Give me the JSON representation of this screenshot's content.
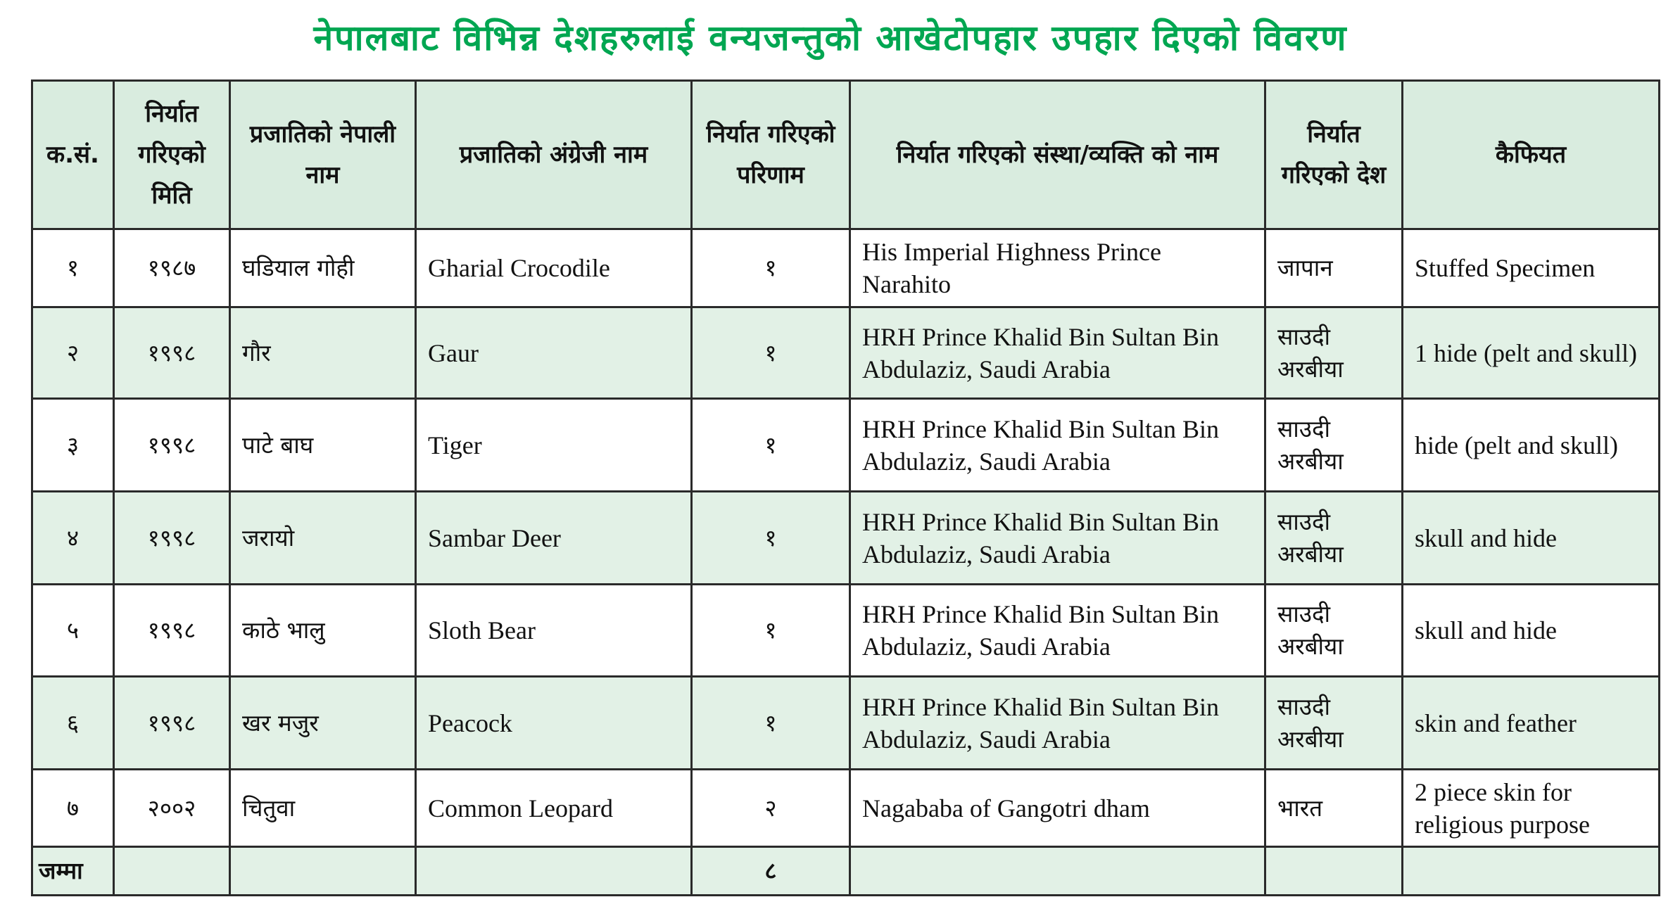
{
  "title": "नेपालबाट विभिन्न देशहरुलाई वन्यजन्तुको आखेटोपहार उपहार दिएको विवरण",
  "colors": {
    "title": "#00a651",
    "header_bg": "#d9ecdf",
    "alt_row_bg": "#e2f1e6"
  },
  "headers": [
    "क.सं.",
    "निर्यात गरिएको मिति",
    "प्रजातिको नेपाली नाम",
    "प्रजातिको अंग्रेजी नाम",
    "निर्यात गरिएको परिणाम",
    "निर्यात गरिएको संस्था/व्यक्ति को नाम",
    "निर्यात गरिएको देश",
    "कैफियत"
  ],
  "rows": [
    [
      "१",
      "१९८७",
      "घडियाल गोही",
      "Gharial Crocodile",
      "१",
      "His Imperial Highness Prince Narahito",
      "जापान",
      "Stuffed Specimen"
    ],
    [
      "२",
      "१९९८",
      "गौर",
      "Gaur",
      "१",
      "HRH Prince Khalid Bin Sultan Bin Abdulaziz, Saudi Arabia",
      "साउदी अरबीया",
      "1 hide (pelt and skull)"
    ],
    [
      "३",
      "१९९८",
      "पाटे बाघ",
      "Tiger",
      "१",
      "HRH Prince Khalid Bin Sultan Bin Abdulaziz, Saudi Arabia",
      "साउदी अरबीया",
      "hide (pelt and skull)"
    ],
    [
      "४",
      "१९९८",
      "जरायो",
      "Sambar Deer",
      "१",
      "HRH Prince Khalid Bin Sultan Bin Abdulaziz, Saudi Arabia",
      "साउदी अरबीया",
      "skull and hide"
    ],
    [
      "५",
      "१९९८",
      "काठे भालु",
      "Sloth Bear",
      "१",
      "HRH Prince Khalid Bin Sultan Bin Abdulaziz, Saudi Arabia",
      "साउदी अरबीया",
      "skull and hide"
    ],
    [
      "६",
      "१९९८",
      "खर मजुर",
      "Peacock",
      "१",
      "HRH Prince Khalid Bin Sultan Bin Abdulaziz, Saudi Arabia",
      "साउदी अरबीया",
      "skin and feather"
    ],
    [
      "७",
      "२००२",
      "चितुवा",
      "Common Leopard",
      "२",
      "Nagababa of Gangotri dham",
      "भारत",
      "2 piece skin for religious purpose"
    ]
  ],
  "total": {
    "label": "जम्मा",
    "quantity": "८"
  }
}
